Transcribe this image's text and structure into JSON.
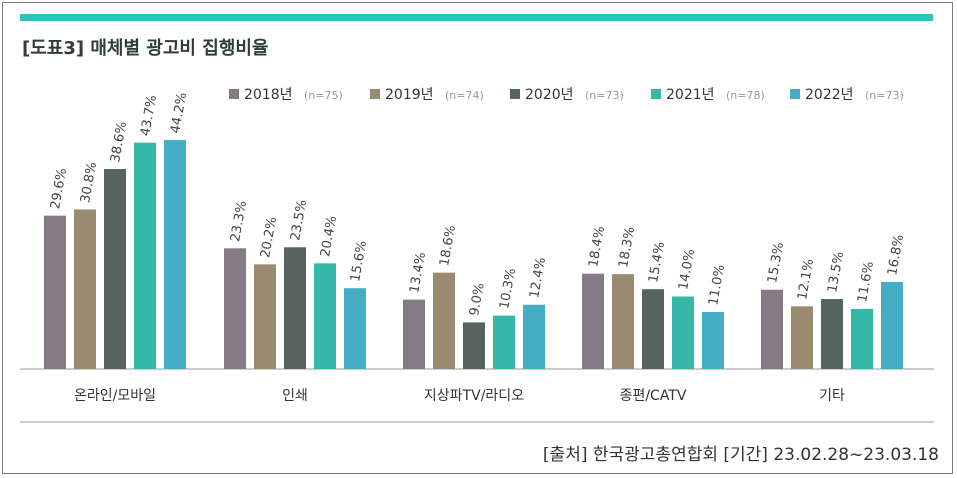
{
  "title": "[도표3] 매체별 광고비 집행비율",
  "source": "[출처] 한국광고총연합회 [기간] 23.02.28~23.03.18",
  "chart_data": {
    "type": "bar",
    "categories": [
      "온라인/모바일",
      "인쇄",
      "지상파TV/라디오",
      "종편/CATV",
      "기타"
    ],
    "series": [
      {
        "name": "2018년",
        "n_label": "(n=75)",
        "color": "#857a86",
        "values": [
          29.6,
          23.3,
          13.4,
          18.4,
          15.3
        ],
        "labels": [
          "29.6%",
          "23.3%",
          "13.4%",
          "18.4%",
          "15.3%"
        ]
      },
      {
        "name": "2019년",
        "n_label": "(n=74)",
        "color": "#9a8a70",
        "values": [
          30.8,
          20.2,
          18.6,
          18.3,
          12.1
        ],
        "labels": [
          "30.8%",
          "20.2%",
          "18.6%",
          "18.3%",
          "12.1%"
        ]
      },
      {
        "name": "2020년",
        "n_label": "(n=73)",
        "color": "#56645f",
        "values": [
          38.6,
          23.5,
          9.0,
          15.4,
          13.5
        ],
        "labels": [
          "38.6%",
          "23.5%",
          "9.0%",
          "15.4%",
          "13.5%"
        ]
      },
      {
        "name": "2021년",
        "n_label": "(n=78)",
        "color": "#36b8a8",
        "values": [
          43.7,
          20.4,
          10.3,
          14.0,
          11.6
        ],
        "labels": [
          "43.7%",
          "20.4%",
          "10.3%",
          "14.0%",
          "11.6%"
        ]
      },
      {
        "name": "2022년",
        "n_label": "(n=73)",
        "color": "#46aec4",
        "values": [
          44.2,
          15.6,
          12.4,
          11.0,
          16.8
        ],
        "labels": [
          "44.2%",
          "15.6%",
          "12.4%",
          "11.0%",
          "16.8%"
        ]
      }
    ],
    "legend_position": "top",
    "grid": false,
    "ylim": [
      0,
      50
    ],
    "xlabel": "",
    "ylabel": ""
  }
}
